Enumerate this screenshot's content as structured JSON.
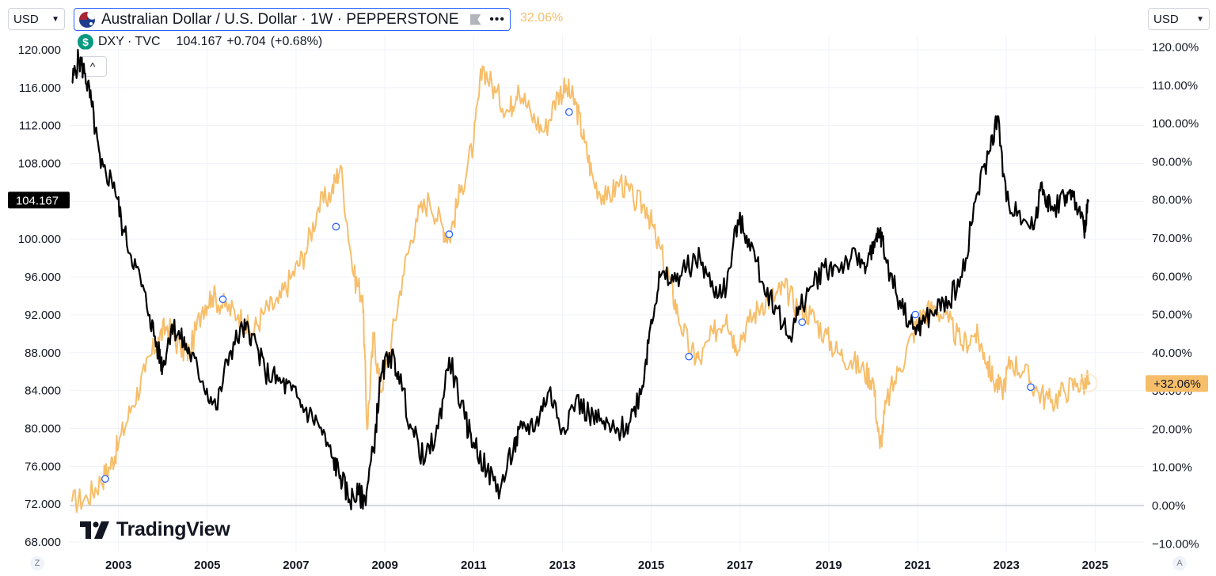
{
  "currency_left": "USD",
  "currency_right": "USD",
  "legend": {
    "title": "Australian Dollar / U.S. Dollar · 1W · PEPPERSTONE",
    "percent": "32.06%",
    "more_glyph": "•••"
  },
  "dxy": {
    "name": "DXY · TVC",
    "last": "104.167",
    "change": "+0.704",
    "change_pct": "(+0.68%)",
    "icon_glyph": "$"
  },
  "collapse_glyph": "^",
  "logo_text": "TradingView",
  "corner_left": "Z",
  "corner_right": "A",
  "colors": {
    "dxy_line": "#000000",
    "audusd_line": "#f7be6a",
    "grid": "#f0f3fa",
    "axis_text": "#131722",
    "badge_dxy": "#000000",
    "badge_pct": "#f7be6a",
    "marker": "#2962ff"
  },
  "chart_data": {
    "type": "line",
    "x_axis": {
      "ticks": [
        "2003",
        "2005",
        "2007",
        "2009",
        "2011",
        "2013",
        "2015",
        "2017",
        "2019",
        "2021",
        "2023",
        "2025"
      ],
      "range": [
        2001.9,
        2026.1
      ]
    },
    "left_axis": {
      "ticks": [
        "68.000",
        "72.000",
        "76.000",
        "80.000",
        "84.000",
        "88.000",
        "92.000",
        "96.000",
        "100.000",
        "104.000",
        "108.000",
        "112.000",
        "116.000",
        "120.000"
      ],
      "range": [
        67,
        121.5
      ]
    },
    "right_axis": {
      "ticks": [
        "−10.00%",
        "0.00%",
        "10.00%",
        "20.00%",
        "30.00%",
        "40.00%",
        "50.00%",
        "60.00%",
        "70.00%",
        "80.00%",
        "90.00%",
        "100.00%",
        "110.00%",
        "120.00%"
      ],
      "range": [
        -12,
        123
      ],
      "zero_line": 0
    },
    "badges": {
      "dxy_last": "104.167",
      "pct_last": "+32.06%"
    },
    "series": [
      {
        "name": "DXY · TVC",
        "axis": "left",
        "x": [
          2001.95,
          2002.1,
          2002.25,
          2002.4,
          2002.6,
          2002.9,
          2003.1,
          2003.4,
          2003.7,
          2003.9,
          2004.0,
          2004.2,
          2004.4,
          2004.6,
          2004.9,
          2005.2,
          2005.5,
          2005.8,
          2006.0,
          2006.3,
          2006.6,
          2006.9,
          2007.2,
          2007.5,
          2007.8,
          2008.0,
          2008.2,
          2008.4,
          2008.55,
          2008.75,
          2008.9,
          2009.1,
          2009.3,
          2009.6,
          2009.9,
          2010.2,
          2010.45,
          2010.8,
          2011.0,
          2011.3,
          2011.6,
          2011.9,
          2012.1,
          2012.4,
          2012.7,
          2013.0,
          2013.3,
          2013.6,
          2013.9,
          2014.2,
          2014.5,
          2014.8,
          2015.0,
          2015.2,
          2015.5,
          2015.8,
          2016.1,
          2016.4,
          2016.7,
          2016.95,
          2017.2,
          2017.5,
          2017.8,
          2018.1,
          2018.3,
          2018.6,
          2018.9,
          2019.2,
          2019.5,
          2019.8,
          2020.0,
          2020.15,
          2020.3,
          2020.6,
          2020.9,
          2021.1,
          2021.4,
          2021.7,
          2022.0,
          2022.3,
          2022.6,
          2022.8,
          2023.0,
          2023.3,
          2023.6,
          2023.8,
          2024.0,
          2024.3,
          2024.5,
          2024.75,
          2024.85
        ],
        "values": [
          116.5,
          119.0,
          117.5,
          114.0,
          107.5,
          106.0,
          101.0,
          97.0,
          92.0,
          88.0,
          86.5,
          91.0,
          89.5,
          88.0,
          85.0,
          82.0,
          88.0,
          90.5,
          90.0,
          86.0,
          85.0,
          84.0,
          82.0,
          80.5,
          77.0,
          75.0,
          72.5,
          73.0,
          72.5,
          78.0,
          85.0,
          88.0,
          86.0,
          80.0,
          76.5,
          80.0,
          87.5,
          81.0,
          78.5,
          75.5,
          73.5,
          78.0,
          80.0,
          80.5,
          84.0,
          80.0,
          83.0,
          81.5,
          80.5,
          79.5,
          80.5,
          84.5,
          91.5,
          96.0,
          95.5,
          97.0,
          98.0,
          94.5,
          95.0,
          102.0,
          100.0,
          95.5,
          93.0,
          89.5,
          92.0,
          95.0,
          97.0,
          97.0,
          98.0,
          97.5,
          98.5,
          101.0,
          97.5,
          93.5,
          90.5,
          91.0,
          92.5,
          93.5,
          96.0,
          104.0,
          109.0,
          113.0,
          104.0,
          103.0,
          101.0,
          106.0,
          103.0,
          104.5,
          104.5,
          101.0,
          104.167
        ]
      },
      {
        "name": "Australian Dollar / U.S. Dollar · 1W · PEPPERSTONE",
        "axis": "right",
        "x": [
          2001.95,
          2002.3,
          2002.6,
          2002.8,
          2003.0,
          2003.3,
          2003.6,
          2003.9,
          2004.1,
          2004.4,
          2004.6,
          2004.9,
          2005.1,
          2005.4,
          2005.7,
          2006.0,
          2006.3,
          2006.6,
          2006.9,
          2007.2,
          2007.5,
          2007.8,
          2008.0,
          2008.3,
          2008.5,
          2008.6,
          2008.75,
          2008.9,
          2009.1,
          2009.4,
          2009.7,
          2010.0,
          2010.3,
          2010.45,
          2010.7,
          2011.0,
          2011.2,
          2011.5,
          2011.8,
          2012.0,
          2012.3,
          2012.6,
          2012.9,
          2013.1,
          2013.3,
          2013.5,
          2013.7,
          2014.0,
          2014.3,
          2014.6,
          2014.9,
          2015.1,
          2015.4,
          2015.6,
          2015.9,
          2016.1,
          2016.4,
          2016.7,
          2016.9,
          2017.2,
          2017.5,
          2017.8,
          2018.0,
          2018.3,
          2018.6,
          2018.9,
          2019.2,
          2019.5,
          2019.8,
          2020.0,
          2020.15,
          2020.3,
          2020.6,
          2020.9,
          2021.1,
          2021.4,
          2021.7,
          2022.0,
          2022.3,
          2022.5,
          2022.7,
          2022.9,
          2023.1,
          2023.4,
          2023.7,
          2024.0,
          2024.3,
          2024.6,
          2024.85
        ],
        "values": [
          1,
          2,
          6.5,
          10,
          16,
          26,
          35,
          44,
          47,
          41,
          40,
          52,
          55,
          52,
          50,
          45,
          51,
          53,
          60,
          66,
          78,
          82,
          89,
          60,
          55,
          20,
          45,
          30,
          40,
          60,
          75,
          80,
          73,
          70,
          82,
          95,
          115,
          108,
          103,
          110,
          102,
          98,
          108,
          109,
          105,
          95,
          85,
          80,
          85,
          80,
          78,
          70,
          60,
          50,
          40,
          38,
          45,
          50,
          42,
          48,
          53,
          55,
          57,
          52,
          50,
          45,
          40,
          38,
          35,
          33,
          15,
          27,
          36,
          45,
          50,
          52,
          48,
          42,
          45,
          40,
          33,
          30,
          38,
          35,
          30,
          27,
          30,
          32,
          32.06
        ]
      }
    ],
    "markers": [
      {
        "date": 2002.7,
        "pct": 7
      },
      {
        "date": 2005.35,
        "pct": 54
      },
      {
        "date": 2007.9,
        "pct": 73
      },
      {
        "date": 2010.45,
        "pct": 71
      },
      {
        "date": 2013.15,
        "pct": 103
      },
      {
        "date": 2015.85,
        "pct": 39
      },
      {
        "date": 2018.4,
        "pct": 48
      },
      {
        "date": 2020.95,
        "pct": 50
      },
      {
        "date": 2023.55,
        "pct": 31
      }
    ]
  }
}
